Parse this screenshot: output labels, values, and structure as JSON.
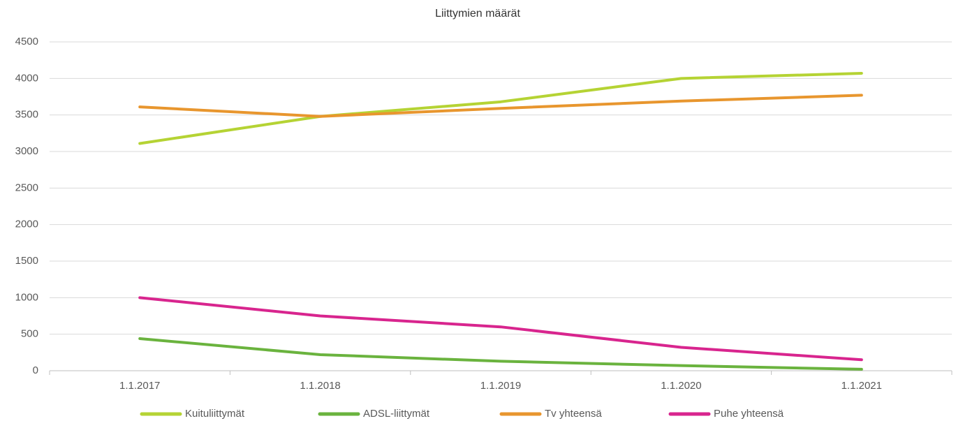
{
  "chart_data": {
    "type": "line",
    "title": "Liittymien määrät",
    "categories": [
      "1.1.2017",
      "1.1.2018",
      "1.1.2019",
      "1.1.2020",
      "1.1.2021"
    ],
    "series": [
      {
        "name": "Kuituliittymät",
        "color": "#b5d334",
        "values": [
          3110,
          3480,
          3680,
          4000,
          4070
        ]
      },
      {
        "name": "ADSL-liittymät",
        "color": "#6ab33e",
        "values": [
          440,
          220,
          130,
          70,
          20
        ]
      },
      {
        "name": "Tv yhteensä",
        "color": "#e8962e",
        "values": [
          3610,
          3480,
          3590,
          3690,
          3770
        ]
      },
      {
        "name": "Puhe yhteensä",
        "color": "#d8258e",
        "values": [
          1000,
          750,
          600,
          320,
          150
        ]
      }
    ],
    "ylim": [
      0,
      4500
    ],
    "yticks": [
      0,
      500,
      1000,
      1500,
      2000,
      2500,
      3000,
      3500,
      4000,
      4500
    ],
    "grid": true,
    "legend": "bottom"
  }
}
